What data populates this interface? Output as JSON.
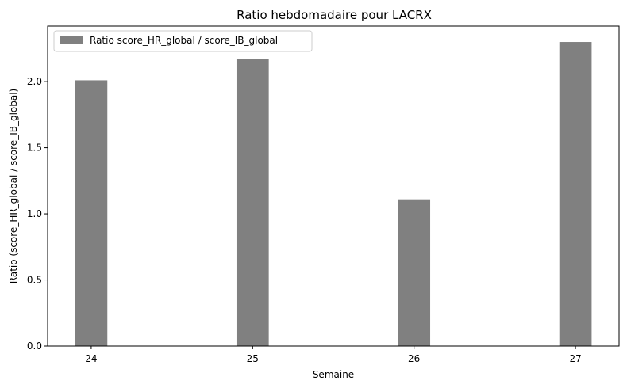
{
  "chart_data": {
    "type": "bar",
    "title": "Ratio hebdomadaire pour LACRX",
    "xlabel": "Semaine",
    "ylabel": "Ratio (score_HR_global / score_IB_global)",
    "categories": [
      "24",
      "25",
      "26",
      "27"
    ],
    "series": [
      {
        "name": "Ratio score_HR_global / score_IB_global",
        "values": [
          2.01,
          2.17,
          1.11,
          2.3
        ],
        "color": "#808080"
      }
    ],
    "ylim": [
      0,
      2.42
    ],
    "yticks": [
      0.0,
      0.5,
      1.0,
      1.5,
      2.0
    ],
    "ytick_labels": [
      "0.0",
      "0.5",
      "1.0",
      "1.5",
      "2.0"
    ],
    "xlim": [
      23.73,
      27.27
    ],
    "bar_width": 0.2,
    "grid": false,
    "legend_position": "top-left"
  }
}
